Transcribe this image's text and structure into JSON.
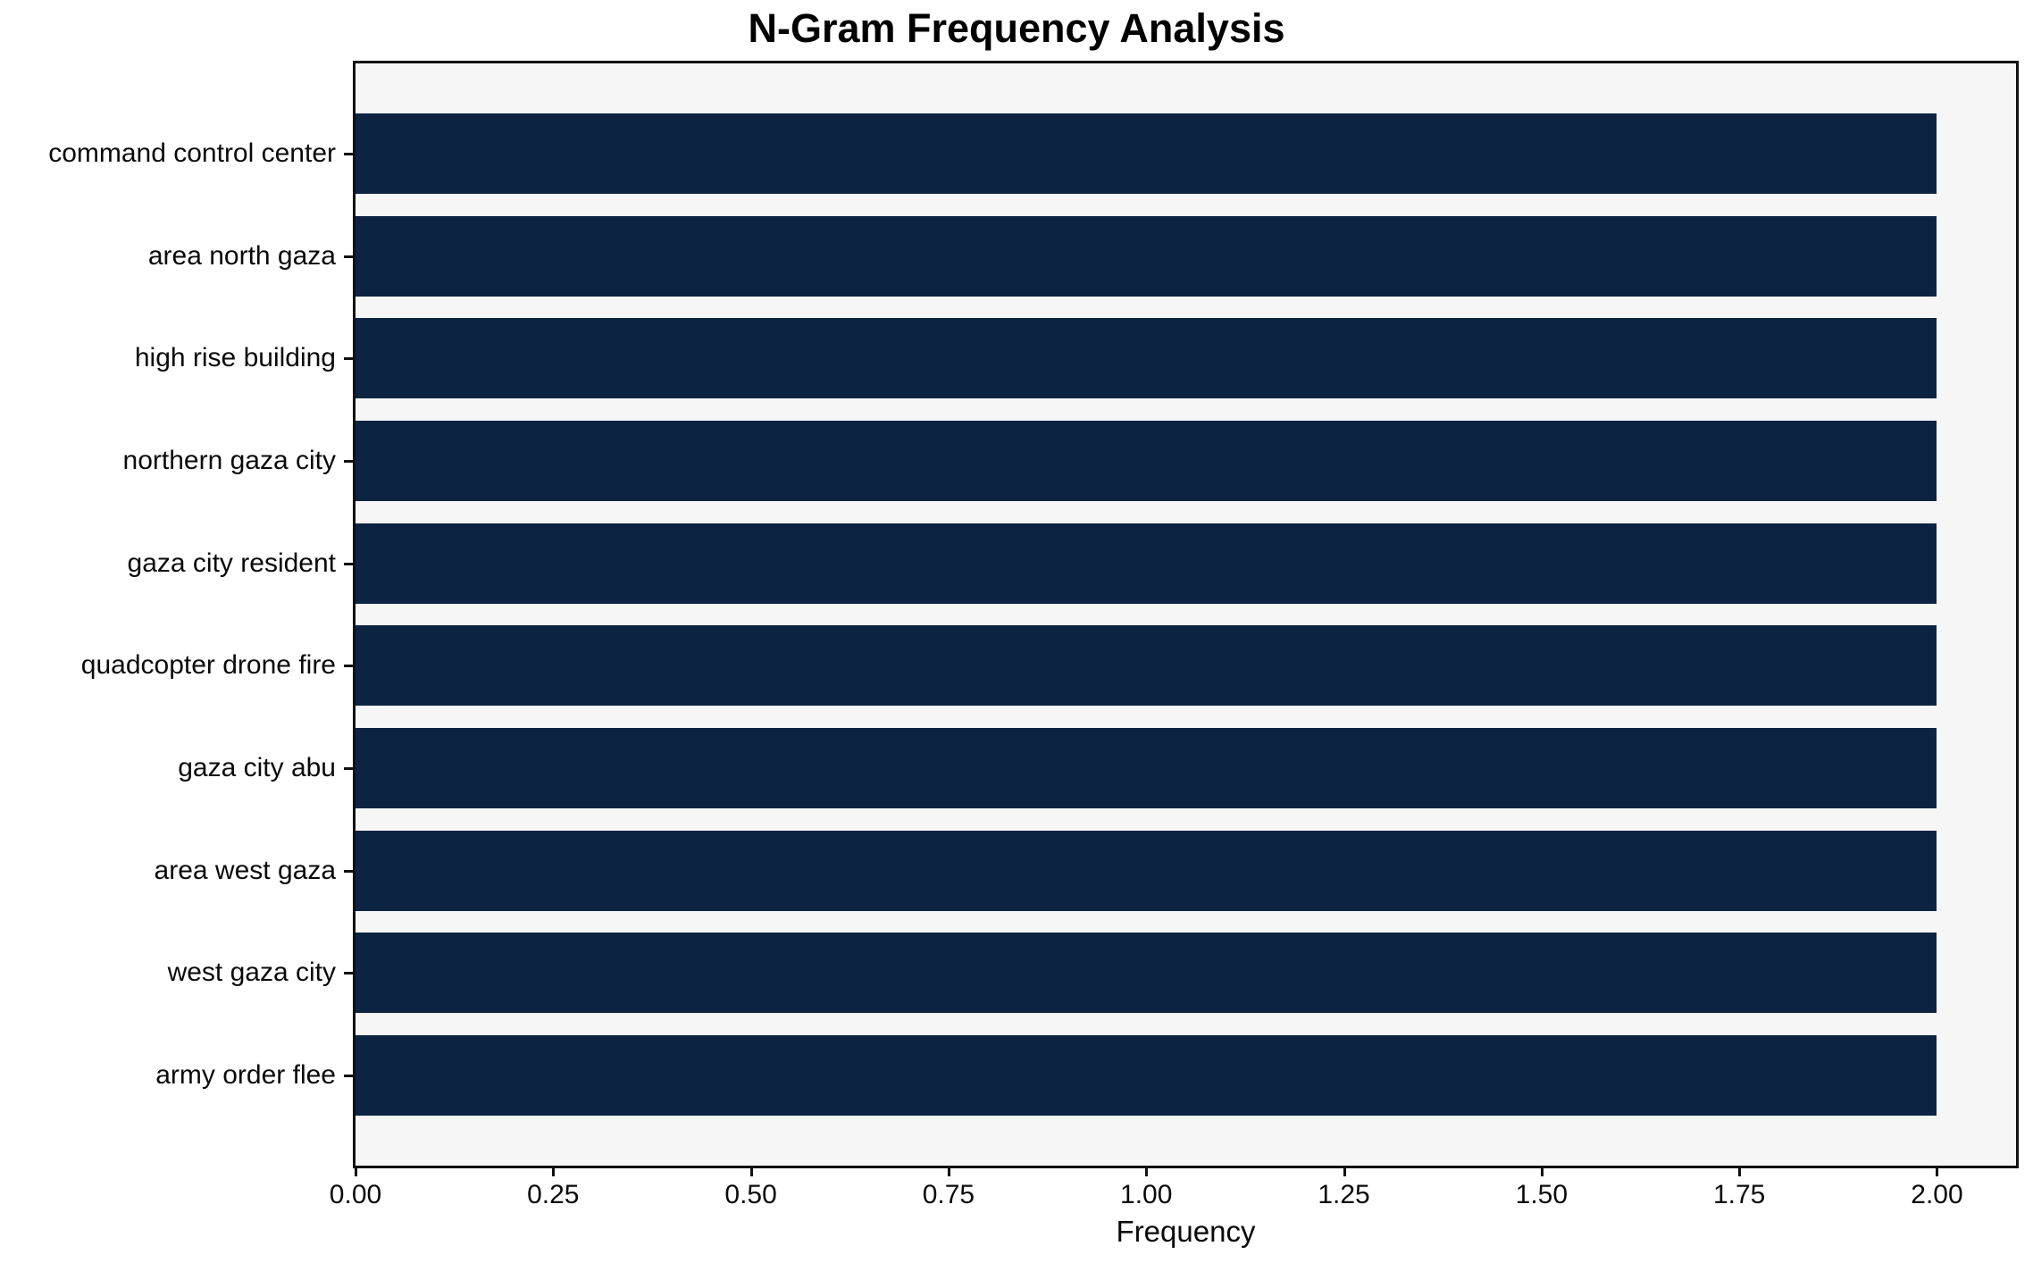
{
  "chart_data": {
    "type": "bar",
    "orientation": "horizontal",
    "title": "N-Gram Frequency Analysis",
    "xlabel": "Frequency",
    "ylabel": "",
    "categories": [
      "command control center",
      "area north gaza",
      "high rise building",
      "northern gaza city",
      "gaza city resident",
      "quadcopter drone fire",
      "gaza city abu",
      "area west gaza",
      "west gaza city",
      "army order flee"
    ],
    "values": [
      2,
      2,
      2,
      2,
      2,
      2,
      2,
      2,
      2,
      2
    ],
    "xlim": [
      0,
      2.1
    ],
    "xticks": {
      "values": [
        0,
        0.25,
        0.5,
        0.75,
        1.0,
        1.25,
        1.5,
        1.75,
        2.0
      ],
      "labels": [
        "0.00",
        "0.25",
        "0.50",
        "0.75",
        "1.00",
        "1.25",
        "1.50",
        "1.75",
        "2.00"
      ]
    },
    "grid": false,
    "legend": null,
    "colors": {
      "bar": "#0c2442",
      "plot_background": "#f6f6f6",
      "figure_background": "#ffffff",
      "frame": "#111111",
      "text": "#0a0a0a"
    }
  }
}
